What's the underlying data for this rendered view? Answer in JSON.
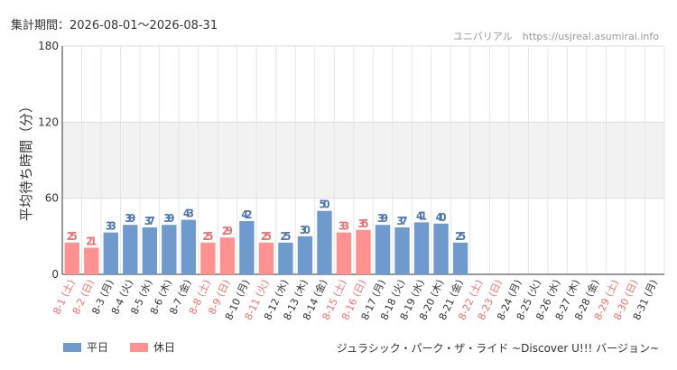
{
  "period_label": "集計期間：2026-08-01～2026-08-31",
  "credit": "ユニバリアル　https://usjreal.asumirai.info",
  "attraction": "ジュラシック・パーク・ザ・ライド ~Discover U!!! バージョン~",
  "legend": [
    {
      "label": "平日",
      "color": "#6e9acd"
    },
    {
      "label": "休日",
      "color": "#ff9191"
    }
  ],
  "colors": {
    "weekday": "#6e9acd",
    "holiday": "#ff9191",
    "weekday_text": "#4a76b0",
    "holiday_text": "#ee6f6f"
  },
  "chart_data": {
    "type": "bar",
    "ylabel": "平均待ち時間（分）",
    "xlabel": "",
    "ylim": [
      0,
      180
    ],
    "yticks": [
      0,
      60,
      120,
      180
    ],
    "categories": [
      "8-1 (土)",
      "8-2 (日)",
      "8-3 (月)",
      "8-4 (火)",
      "8-5 (水)",
      "8-6 (木)",
      "8-7 (金)",
      "8-8 (土)",
      "8-9 (日)",
      "8-10 (月)",
      "8-11 (火)",
      "8-12 (水)",
      "8-13 (木)",
      "8-14 (金)",
      "8-15 (土)",
      "8-16 (日)",
      "8-17 (月)",
      "8-18 (火)",
      "8-19 (水)",
      "8-20 (木)",
      "8-21 (金)",
      "8-22 (土)",
      "8-23 (日)",
      "8-24 (月)",
      "8-25 (火)",
      "8-26 (水)",
      "8-27 (木)",
      "8-28 (金)",
      "8-29 (土)",
      "8-30 (日)",
      "8-31 (月)"
    ],
    "values": [
      25,
      21,
      33,
      39,
      37,
      39,
      43,
      25,
      29,
      42,
      25,
      25,
      30,
      50,
      33,
      35,
      39,
      37,
      41,
      40,
      25,
      null,
      null,
      null,
      null,
      null,
      null,
      null,
      null,
      null,
      null
    ],
    "day_type": [
      "holiday",
      "holiday",
      "weekday",
      "weekday",
      "weekday",
      "weekday",
      "weekday",
      "holiday",
      "holiday",
      "weekday",
      "holiday",
      "weekday",
      "weekday",
      "weekday",
      "holiday",
      "holiday",
      "weekday",
      "weekday",
      "weekday",
      "weekday",
      "weekday",
      "holiday",
      "holiday",
      "weekday",
      "weekday",
      "weekday",
      "weekday",
      "weekday",
      "holiday",
      "holiday",
      "weekday"
    ],
    "grid": true,
    "legend_position": "bottom-left"
  }
}
